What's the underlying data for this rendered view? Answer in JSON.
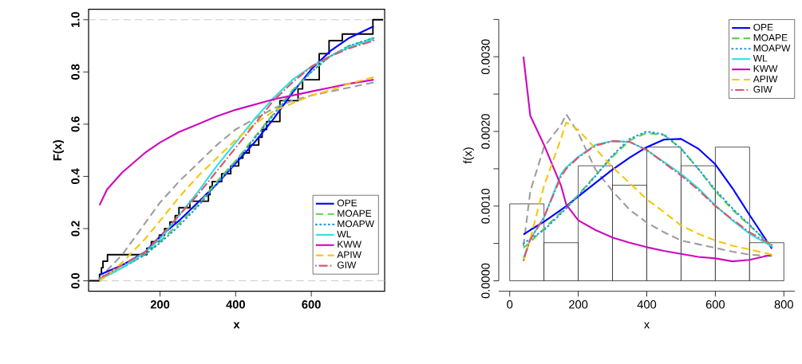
{
  "chart_data": [
    {
      "type": "line",
      "xlabel": "x",
      "ylabel": "F(x)",
      "xlim": [
        11,
        794
      ],
      "ylim": [
        -0.04,
        1.04
      ],
      "xticks": [
        200,
        400,
        600
      ],
      "yticks": [
        {
          "value": 0,
          "label": "0.0"
        },
        {
          "value": 0.2,
          "label": "0.2"
        },
        {
          "value": 0.4,
          "label": "0.4"
        },
        {
          "value": 0.6,
          "label": "0.6"
        },
        {
          "value": 0.8,
          "label": "0.8"
        },
        {
          "value": 1,
          "label": "1.0"
        }
      ],
      "ref_lines": [
        {
          "axis": "y",
          "value": 0,
          "color": "#bebebe",
          "line_style": "dashed"
        },
        {
          "axis": "y",
          "value": 1,
          "color": "#bebebe",
          "line_style": "dashed"
        }
      ],
      "legend": "bottom right",
      "x": [
        40,
        60,
        100,
        160,
        200,
        250,
        300,
        350,
        400,
        450,
        500,
        550,
        600,
        650,
        700,
        765
      ],
      "series": [
        {
          "type": "step",
          "color": "#000000",
          "line_style": "solid",
          "x": [
            12,
            40,
            45,
            49,
            61,
            165,
            177,
            198,
            212,
            226,
            240,
            250,
            279,
            328,
            332,
            338,
            363,
            387,
            408,
            419,
            436,
            461,
            470,
            482,
            517,
            565,
            577,
            621,
            647,
            682,
            763,
            790
          ],
          "values": [
            0,
            0.025,
            0.05,
            0.075,
            0.1,
            0.125,
            0.15,
            0.175,
            0.2,
            0.225,
            0.25,
            0.28,
            0.305,
            0.33,
            0.36,
            0.38,
            0.41,
            0.44,
            0.47,
            0.49,
            0.52,
            0.55,
            0.58,
            0.61,
            0.69,
            0.735,
            0.77,
            0.87,
            0.92,
            0.945,
            1,
            1
          ]
        },
        {
          "color": "#9e9e9e",
          "line_style": "dashed",
          "values": [
            0,
            0.04,
            0.1,
            0.22,
            0.3,
            0.38,
            0.45,
            0.52,
            0.58,
            0.62,
            0.66,
            0.69,
            0.71,
            0.725,
            0.74,
            0.76
          ]
        },
        {
          "name": "OPE",
          "color": "#0000ff",
          "line_style": "solid",
          "values": [
            0.023,
            0.035,
            0.06,
            0.11,
            0.17,
            0.23,
            0.3,
            0.37,
            0.45,
            0.53,
            0.62,
            0.72,
            0.81,
            0.88,
            0.93,
            0.975
          ]
        },
        {
          "name": "MOAPE",
          "color": "#61d04f",
          "line_style": "dashed",
          "values": [
            0.01,
            0.02,
            0.05,
            0.1,
            0.15,
            0.22,
            0.29,
            0.38,
            0.46,
            0.55,
            0.64,
            0.73,
            0.8,
            0.86,
            0.9,
            0.93
          ]
        },
        {
          "name": "MOAPW",
          "color": "#2297e6",
          "line_style": "dotted",
          "values": [
            0.01,
            0.02,
            0.05,
            0.1,
            0.145,
            0.21,
            0.285,
            0.37,
            0.455,
            0.545,
            0.635,
            0.725,
            0.8,
            0.86,
            0.9,
            0.93
          ]
        },
        {
          "name": "WL",
          "color": "#28e2e5",
          "line_style": "solid",
          "values": [
            0.005,
            0.02,
            0.05,
            0.11,
            0.16,
            0.25,
            0.34,
            0.44,
            0.53,
            0.62,
            0.7,
            0.77,
            0.82,
            0.86,
            0.895,
            0.925
          ]
        },
        {
          "name": "KWW",
          "color": "#cd0bbc",
          "line_style": "solid",
          "values": [
            0.29,
            0.35,
            0.415,
            0.49,
            0.53,
            0.57,
            0.6,
            0.63,
            0.655,
            0.675,
            0.695,
            0.71,
            0.725,
            0.74,
            0.755,
            0.77
          ]
        },
        {
          "name": "APIW",
          "color": "#f5c710",
          "line_style": "dashed",
          "values": [
            0,
            0.02,
            0.07,
            0.16,
            0.23,
            0.32,
            0.4,
            0.47,
            0.54,
            0.6,
            0.65,
            0.68,
            0.71,
            0.73,
            0.755,
            0.78
          ]
        },
        {
          "name": "GIW",
          "color": "#df536b",
          "line_style": "dashdot",
          "values": [
            0.01,
            0.025,
            0.06,
            0.11,
            0.17,
            0.25,
            0.33,
            0.42,
            0.51,
            0.6,
            0.69,
            0.76,
            0.82,
            0.86,
            0.89,
            0.92
          ]
        }
      ]
    },
    {
      "type": "line",
      "xlabel": "x",
      "ylabel": "f(x)",
      "xlim": [
        -32,
        832
      ],
      "ylim": [
        -0.00014,
        0.0035
      ],
      "xticks": [
        0,
        200,
        400,
        600,
        800
      ],
      "yticks": [
        {
          "value": 0,
          "label": "0.0000"
        },
        {
          "value": 0.0005,
          "label": null
        },
        {
          "value": 0.001,
          "label": "0.0010"
        },
        {
          "value": 0.0015,
          "label": null
        },
        {
          "value": 0.002,
          "label": "0.0020"
        },
        {
          "value": 0.0025,
          "label": null
        },
        {
          "value": 0.003,
          "label": "0.0030"
        },
        {
          "value": 0.0035,
          "label": null
        }
      ],
      "legend": "top right",
      "x": [
        40,
        60,
        100,
        150,
        165,
        200,
        250,
        300,
        350,
        400,
        450,
        500,
        550,
        600,
        650,
        700,
        765
      ],
      "series": [
        {
          "type": "histogram",
          "color": "#000000",
          "bins": [
            0,
            100,
            200,
            300,
            400,
            500,
            600,
            700,
            800
          ],
          "values": [
            0.00103,
            0.00051,
            0.00154,
            0.00128,
            0.00179,
            0.00154,
            0.00179,
            0.00051
          ]
        },
        {
          "color": "#9e9e9e",
          "line_style": "dashed",
          "values": [
            0.00046,
            0.0012,
            0.00179,
            0.00209,
            0.00223,
            0.00198,
            0.00149,
            0.0012,
            0.00095,
            0.00078,
            0.00065,
            0.00054,
            0.00049,
            0.00044,
            0.00039,
            0.00035,
            0.00033
          ]
        },
        {
          "name": "OPE",
          "color": "#0000ff",
          "line_style": "solid",
          "values": [
            0.00062,
            0.00068,
            0.00079,
            0.00095,
            0.001,
            0.00113,
            0.00131,
            0.00149,
            0.00165,
            0.00179,
            0.00189,
            0.0019,
            0.00177,
            0.00156,
            0.00124,
            0.00088,
            0.00043
          ]
        },
        {
          "name": "MOAPE",
          "color": "#61d04f",
          "line_style": "dashed",
          "values": [
            0.00044,
            0.00052,
            0.0007,
            0.00092,
            0.00098,
            0.00115,
            0.00141,
            0.00166,
            0.00188,
            0.00198,
            0.00195,
            0.00177,
            0.0015,
            0.0012,
            0.00095,
            0.00074,
            0.00047
          ]
        },
        {
          "name": "MOAPW",
          "color": "#2297e6",
          "line_style": "dotted",
          "values": [
            0.0005,
            0.00056,
            0.00068,
            0.0009,
            0.00097,
            0.00114,
            0.0014,
            0.00168,
            0.0019,
            0.002,
            0.00196,
            0.00177,
            0.0015,
            0.00122,
            0.00097,
            0.00075,
            0.00045
          ]
        },
        {
          "name": "WL",
          "color": "#28e2e5",
          "line_style": "solid",
          "values": [
            0.0003,
            0.00056,
            0.00085,
            0.00143,
            0.00152,
            0.00166,
            0.00182,
            0.00187,
            0.00186,
            0.00175,
            0.00159,
            0.00143,
            0.00124,
            0.00101,
            0.00081,
            0.00063,
            0.00046
          ]
        },
        {
          "name": "KWW",
          "color": "#cd0bbc",
          "line_style": "solid",
          "values": [
            0.003,
            0.00221,
            0.00182,
            0.00127,
            0.00102,
            0.00081,
            0.00068,
            0.00058,
            0.00051,
            0.00045,
            0.0004,
            0.00036,
            0.00032,
            0.0003,
            0.00026,
            0.00028,
            0.00035
          ]
        },
        {
          "name": "APIW",
          "color": "#f5c710",
          "line_style": "dashed",
          "values": [
            0.00026,
            0.00056,
            0.00127,
            0.00191,
            0.00212,
            0.00202,
            0.00177,
            0.00152,
            0.00131,
            0.00109,
            0.00092,
            0.00074,
            0.00063,
            0.00054,
            0.00047,
            0.00042,
            0.00035
          ]
        },
        {
          "name": "GIW",
          "color": "#df536b",
          "line_style": "dashdot",
          "values": [
            0.00028,
            0.00055,
            0.00085,
            0.0014,
            0.0015,
            0.00165,
            0.00181,
            0.00187,
            0.00186,
            0.00175,
            0.00158,
            0.00141,
            0.00122,
            0.001,
            0.00082,
            0.00065,
            0.00048
          ]
        }
      ]
    }
  ]
}
